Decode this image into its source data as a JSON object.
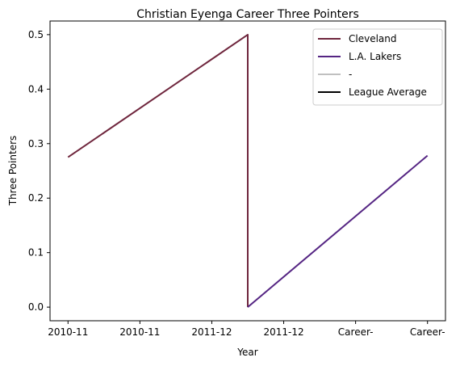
{
  "chart_data": {
    "type": "line",
    "title": "Christian Eyenga Career Three Pointers",
    "xlabel": "Year",
    "ylabel": "Three Pointers",
    "x_tick_labels": [
      "2010-11",
      "2010-11",
      "2011-12",
      "2011-12",
      "Career-",
      "Career-"
    ],
    "y_ticks": [
      0.0,
      0.1,
      0.2,
      0.3,
      0.4,
      0.5
    ],
    "y_tick_labels": [
      "0.0",
      "0.1",
      "0.2",
      "0.3",
      "0.4",
      "0.5"
    ],
    "ylim": [
      -0.025,
      0.525
    ],
    "xlim": [
      -0.25,
      5.25
    ],
    "grid": false,
    "legend_position": "top-right",
    "series": [
      {
        "name": "Cleveland",
        "color": "#6f263d",
        "x": [
          0,
          2.5,
          2.5
        ],
        "y": [
          0.275,
          0.5,
          0.0
        ]
      },
      {
        "name": "L.A. Lakers",
        "color": "#552583",
        "x": [
          2.5,
          5
        ],
        "y": [
          0.0,
          0.278
        ]
      },
      {
        "name": "-",
        "color": "#c0c0c0",
        "x": [],
        "y": []
      },
      {
        "name": "League Average",
        "color": "#000000",
        "x": [],
        "y": []
      }
    ]
  }
}
